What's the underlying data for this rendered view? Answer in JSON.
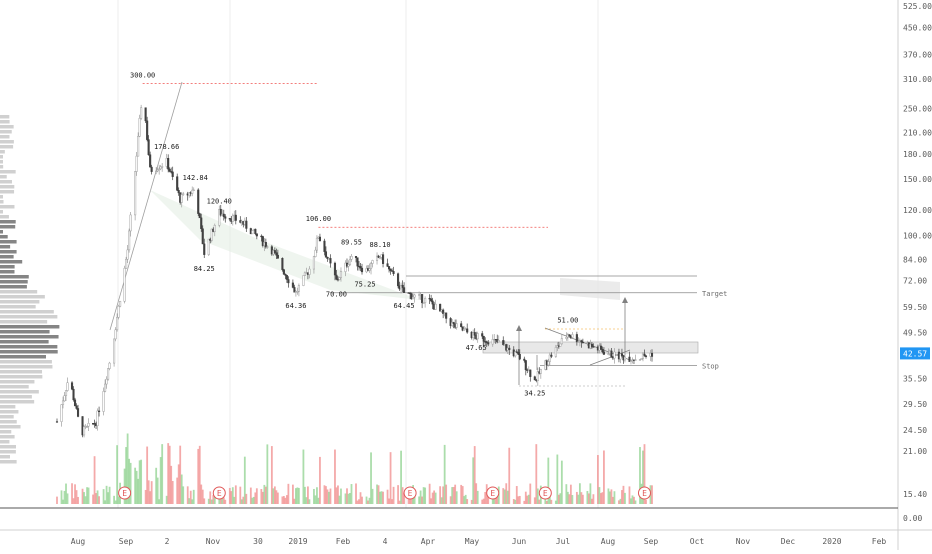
{
  "chart_data": {
    "type": "candlestick",
    "y_scale": "log",
    "price_axis": {
      "ticks": [
        "525.00",
        "450.00",
        "370.00",
        "310.00",
        "250.00",
        "210.00",
        "180.00",
        "150.00",
        "120.00",
        "100.00",
        "84.00",
        "72.00",
        "59.50",
        "49.50",
        "42.57",
        "35.50",
        "29.50",
        "24.50",
        "21.00",
        "15.40",
        "0.00"
      ],
      "current_price": "42.57",
      "current_price_color": "#2196f3"
    },
    "time_axis": {
      "ticks": [
        "Aug",
        "Sep",
        "2",
        "Nov",
        "30",
        "2019",
        "Feb",
        "4",
        "Apr",
        "May",
        "Jun",
        "Jul",
        "Aug",
        "Sep",
        "Oct",
        "Nov",
        "Dec",
        "2020",
        "Feb"
      ]
    },
    "annotations": [
      {
        "label": "300.00",
        "date": "2018-09-15",
        "price": 300
      },
      {
        "label": "178.66",
        "date": "2018-10-01",
        "price": 178.66
      },
      {
        "label": "142.84",
        "date": "2018-10-20",
        "price": 142.84
      },
      {
        "label": "120.40",
        "date": "2018-11-05",
        "price": 120.4
      },
      {
        "label": "84.25",
        "date": "2018-10-26",
        "price": 84.25
      },
      {
        "label": "64.36",
        "date": "2018-12-26",
        "price": 64.36
      },
      {
        "label": "106.00",
        "date": "2019-01-10",
        "price": 106
      },
      {
        "label": "89.55",
        "date": "2019-02-01",
        "price": 89.55
      },
      {
        "label": "70.00",
        "date": "2019-01-22",
        "price": 70
      },
      {
        "label": "88.10",
        "date": "2019-02-20",
        "price": 88.1
      },
      {
        "label": "75.25",
        "date": "2019-02-10",
        "price": 75.25
      },
      {
        "label": "64.45",
        "date": "2019-03-08",
        "price": 64.45
      },
      {
        "label": "47.65",
        "date": "2019-04-25",
        "price": 47.65
      },
      {
        "label": "51.00",
        "date": "2019-06-25",
        "price": 51
      },
      {
        "label": "34.25",
        "date": "2019-06-03",
        "price": 34.25
      }
    ],
    "levels": [
      {
        "label": "Target",
        "price": 66
      },
      {
        "label": "Stop",
        "price": 39
      }
    ],
    "earnings_label": "E",
    "earnings_dates": [
      "2018-09-03",
      "2018-11-05",
      "2019-03-12",
      "2019-05-06",
      "2019-06-10",
      "2019-08-15"
    ],
    "colors": {
      "up": "#9e9e9e",
      "down": "#404040",
      "volume_up": "#8fd18f",
      "volume_down": "#f08c8c",
      "earnings": "#e05757",
      "dotted_red": "#ef5350",
      "level_line": "#8a8a8a"
    }
  }
}
